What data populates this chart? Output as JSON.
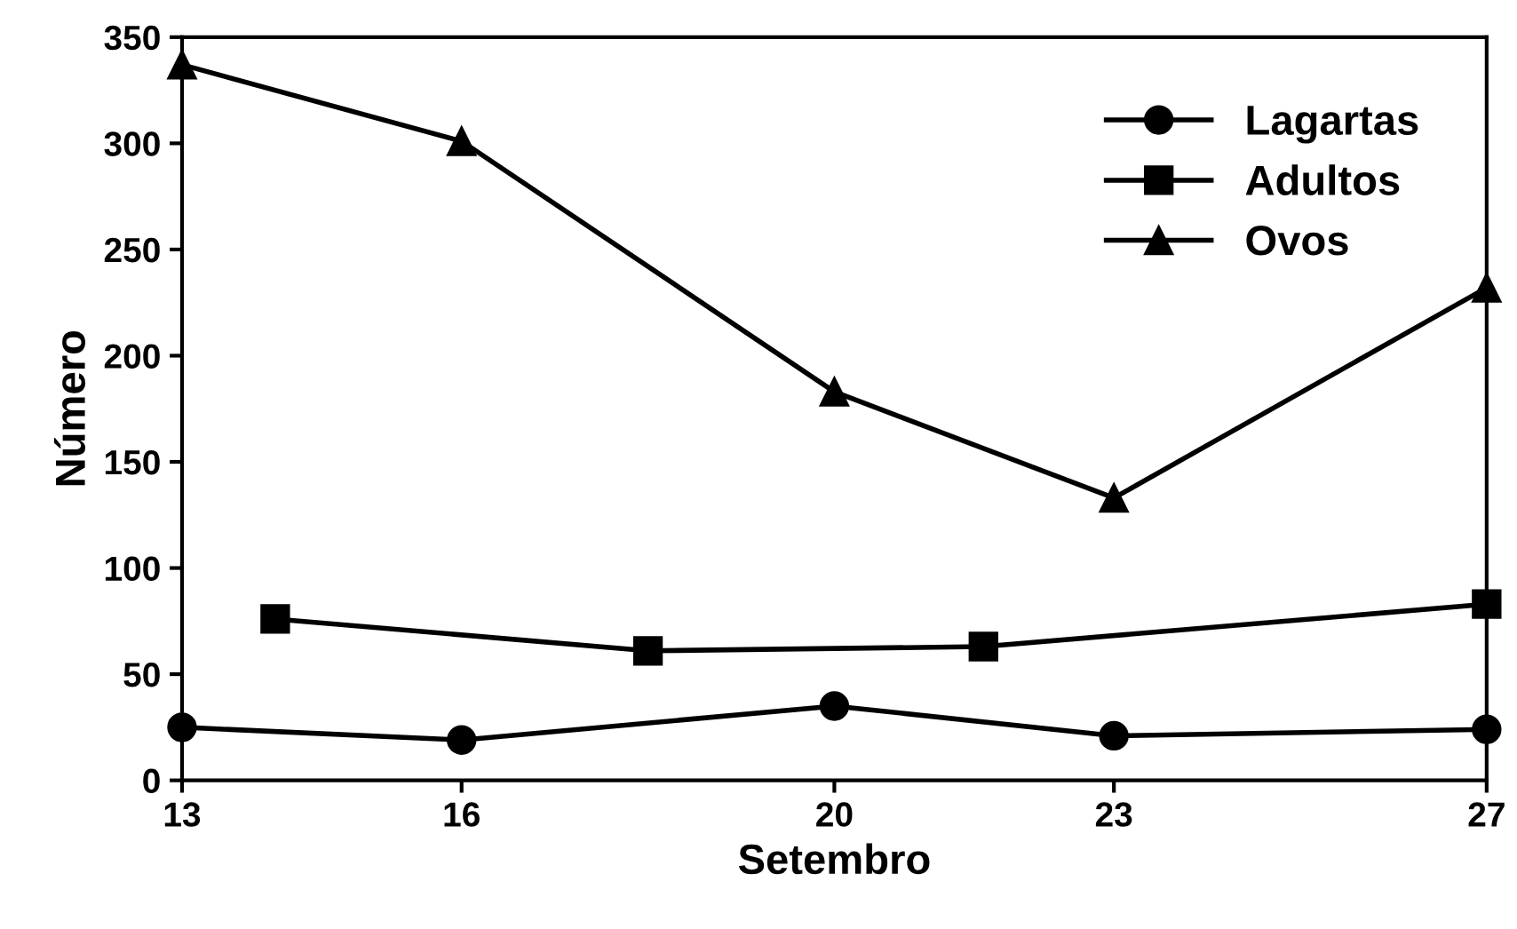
{
  "chart_data": {
    "type": "line",
    "xlabel": "Setembro",
    "ylabel": "Número",
    "xlim": [
      13,
      27
    ],
    "xticks": [
      13,
      16,
      20,
      23,
      27
    ],
    "ylim": [
      0,
      350
    ],
    "yticks": [
      0,
      50,
      100,
      150,
      200,
      250,
      300,
      350
    ],
    "grid": false,
    "legend": "top right",
    "line_style": "solid",
    "series": [
      {
        "name": "Lagartas",
        "color": "#000000",
        "marker": "circle",
        "x": [
          13,
          16,
          20,
          23,
          27
        ],
        "values": [
          25,
          19,
          35,
          21,
          24
        ]
      },
      {
        "name": "Adultos",
        "color": "#000000",
        "marker": "square",
        "x": [
          14,
          18,
          21.6,
          27
        ],
        "values": [
          76,
          61,
          63,
          83
        ]
      },
      {
        "name": "Ovos",
        "color": "#000000",
        "marker": "triangle",
        "x": [
          13,
          16,
          20,
          23,
          27
        ],
        "values": [
          337,
          301,
          183,
          133,
          232
        ]
      }
    ]
  }
}
